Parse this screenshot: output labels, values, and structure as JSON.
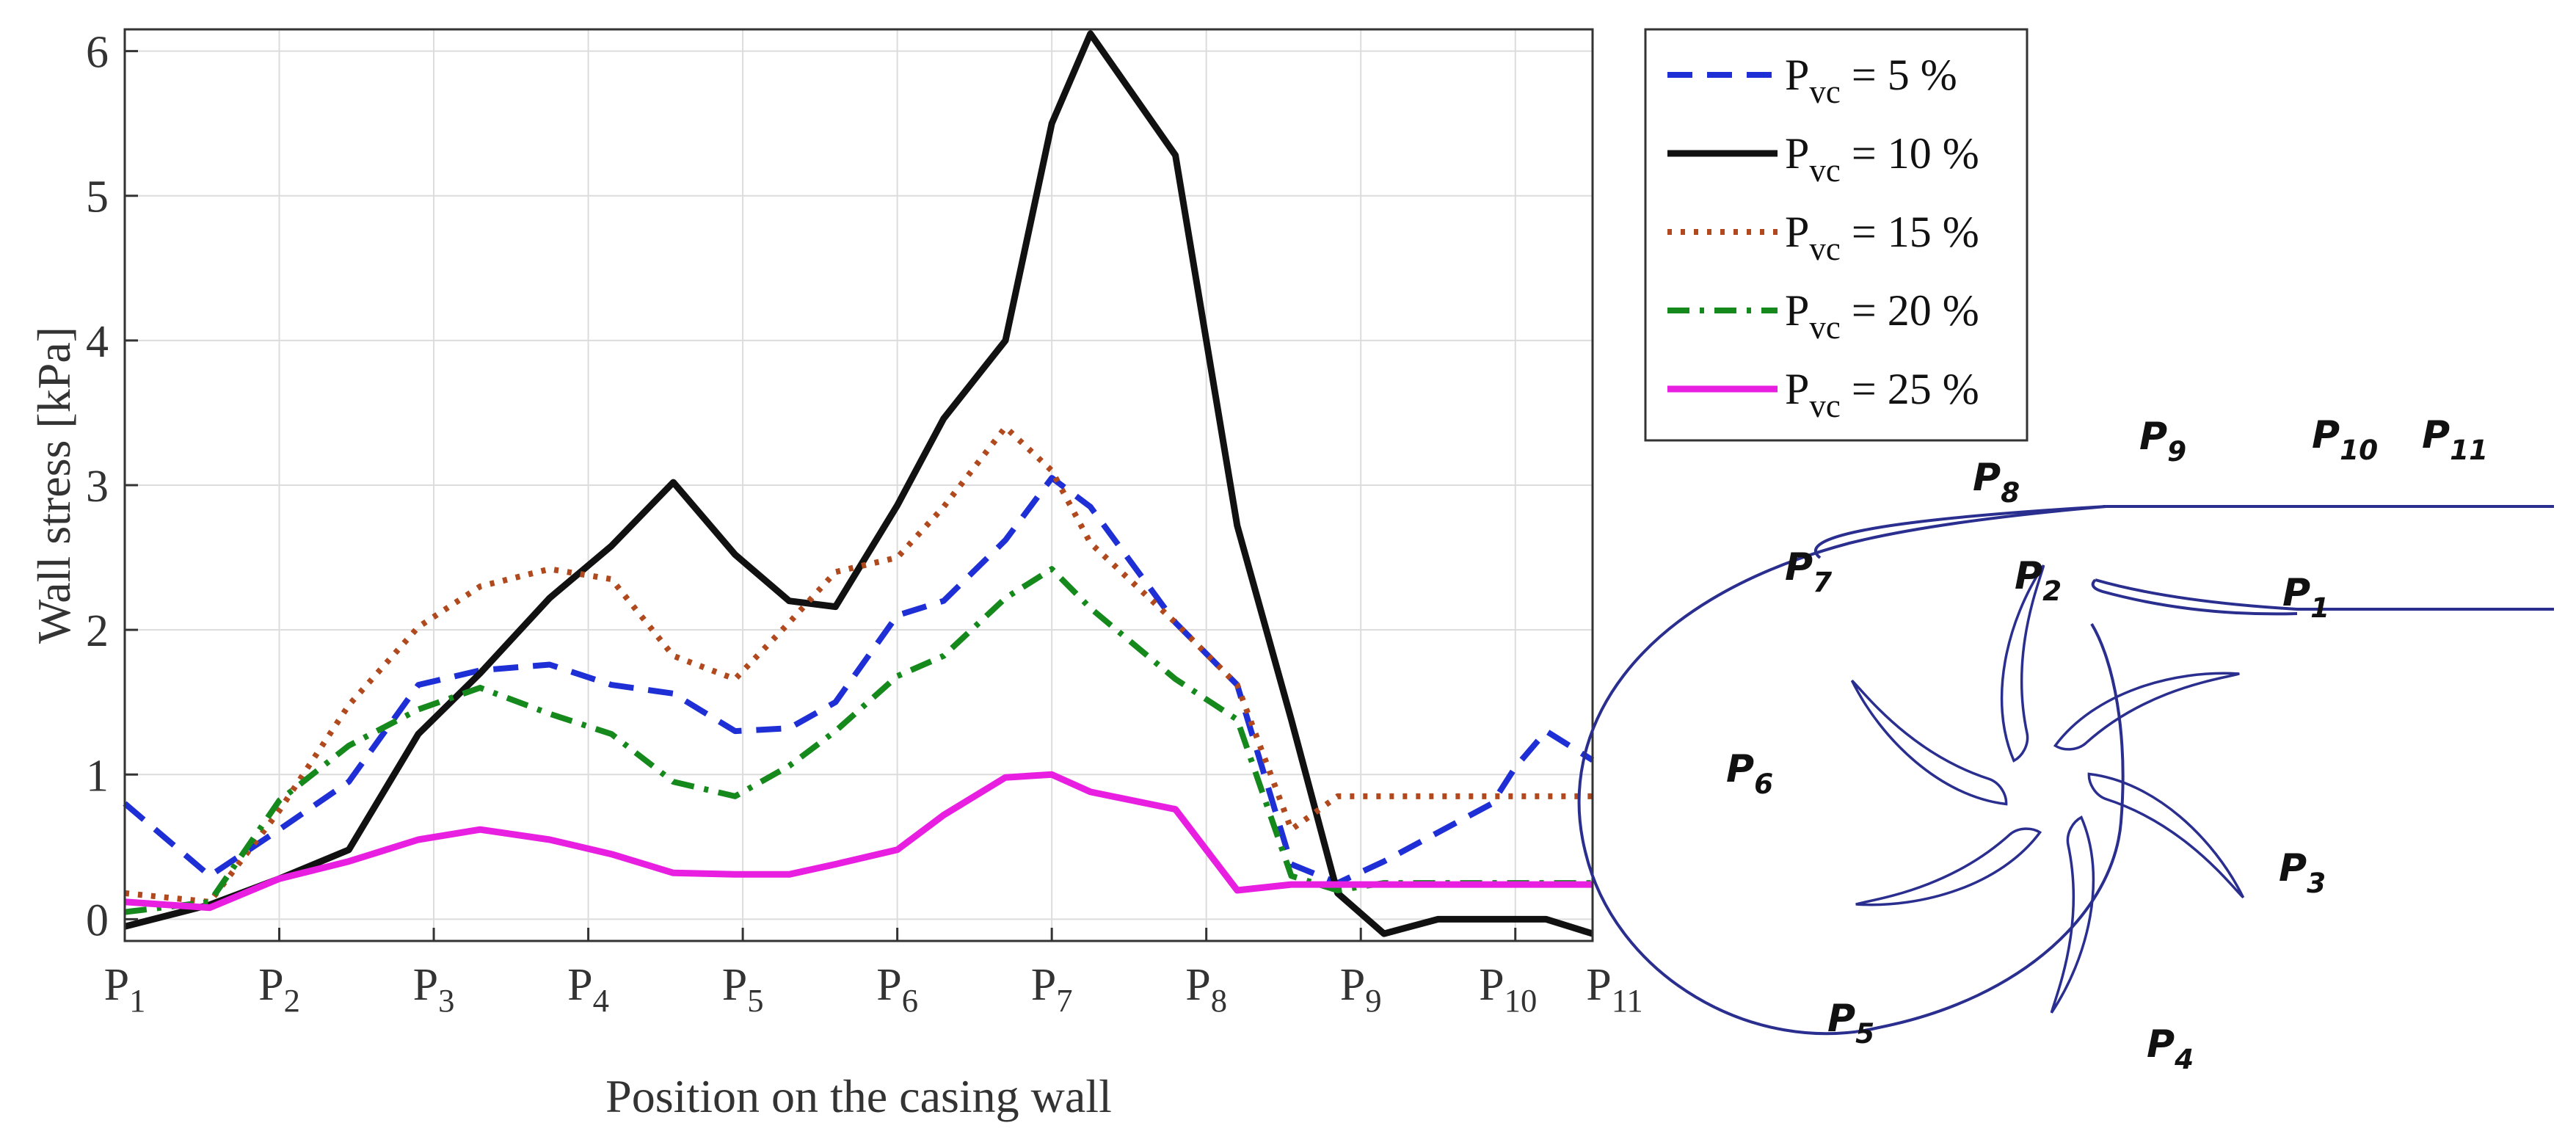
{
  "chart_data": {
    "type": "line",
    "ylabel": "Wall stress [kPa]",
    "xlabel": "Position on the casing wall",
    "xlim": [
      0,
      10
    ],
    "ylim": [
      -0.15,
      6.15
    ],
    "grid": true,
    "legend_position": "outside-top-right",
    "y_ticks": [
      0,
      1,
      2,
      3,
      4,
      5,
      6
    ],
    "x_ticks": [
      {
        "x": 0,
        "base": "P",
        "sub": "1"
      },
      {
        "x": 1,
        "base": "P",
        "sub": "2"
      },
      {
        "x": 2,
        "base": "P",
        "sub": "3"
      },
      {
        "x": 3,
        "base": "P",
        "sub": "4"
      },
      {
        "x": 4,
        "base": "P",
        "sub": "5"
      },
      {
        "x": 5,
        "base": "P",
        "sub": "6"
      },
      {
        "x": 6,
        "base": "P",
        "sub": "7"
      },
      {
        "x": 7,
        "base": "P",
        "sub": "8"
      },
      {
        "x": 8,
        "base": "P",
        "sub": "9"
      },
      {
        "x": 9,
        "base": "P",
        "sub": "10"
      },
      {
        "x": 9.5,
        "base": "P",
        "sub": "11"
      }
    ],
    "series": [
      {
        "name_base": "P",
        "name_sub": "vc",
        "name_rest": " = 5 %",
        "color": "#1f2fd6",
        "dash": "34 20",
        "width": 8,
        "x": [
          0,
          0.55,
          1,
          1.45,
          1.9,
          2.3,
          2.75,
          3.15,
          3.55,
          3.95,
          4.3,
          4.6,
          5,
          5.3,
          5.7,
          6,
          6.25,
          6.8,
          7.2,
          7.55,
          7.85,
          8.15,
          8.5,
          8.85,
          9,
          9.2,
          9.5
        ],
        "y": [
          0.8,
          0.3,
          0.62,
          0.95,
          1.62,
          1.72,
          1.76,
          1.62,
          1.56,
          1.3,
          1.32,
          1.5,
          2.1,
          2.2,
          2.62,
          3.05,
          2.85,
          2.05,
          1.62,
          0.38,
          0.25,
          0.4,
          0.6,
          0.8,
          1.05,
          1.3,
          1.1
        ]
      },
      {
        "name_base": "P",
        "name_sub": "vc",
        "name_rest": " = 10 %",
        "color": "#111111",
        "dash": "",
        "width": 9,
        "x": [
          0,
          0.55,
          1,
          1.45,
          1.9,
          2.3,
          2.75,
          3.15,
          3.55,
          3.95,
          4.3,
          4.6,
          5,
          5.3,
          5.7,
          6,
          6.25,
          6.8,
          7.2,
          7.55,
          7.85,
          8.15,
          8.5,
          8.85,
          9,
          9.2,
          9.5
        ],
        "y": [
          -0.05,
          0.1,
          0.28,
          0.48,
          1.28,
          1.7,
          2.22,
          2.58,
          3.02,
          2.52,
          2.2,
          2.16,
          2.86,
          3.46,
          4.0,
          5.5,
          6.12,
          5.28,
          2.72,
          1.38,
          0.18,
          -0.1,
          0.0,
          0.0,
          0.0,
          0.0,
          -0.1
        ]
      },
      {
        "name_base": "P",
        "name_sub": "vc",
        "name_rest": " = 15 %",
        "color": "#b04a1e",
        "dash": "6 12",
        "width": 8,
        "x": [
          0,
          0.55,
          1,
          1.45,
          1.9,
          2.3,
          2.75,
          3.15,
          3.55,
          3.95,
          4.3,
          4.6,
          5,
          5.3,
          5.7,
          6,
          6.25,
          6.8,
          7.2,
          7.55,
          7.85,
          8.15,
          8.5,
          8.85,
          9,
          9.2,
          9.5
        ],
        "y": [
          0.18,
          0.12,
          0.75,
          1.48,
          2.02,
          2.3,
          2.42,
          2.35,
          1.82,
          1.66,
          2.05,
          2.4,
          2.5,
          2.85,
          3.4,
          3.1,
          2.6,
          2.05,
          1.62,
          0.62,
          0.85,
          0.85,
          0.85,
          0.85,
          0.85,
          0.85,
          0.85
        ]
      },
      {
        "name_base": "P",
        "name_sub": "vc",
        "name_rest": " = 20 %",
        "color": "#16891c",
        "dash": "30 14 6 14",
        "width": 8,
        "x": [
          0,
          0.55,
          1,
          1.45,
          1.9,
          2.3,
          2.75,
          3.15,
          3.55,
          3.95,
          4.3,
          4.6,
          5,
          5.3,
          5.7,
          6,
          6.25,
          6.8,
          7.2,
          7.55,
          7.85,
          8.15,
          8.5,
          8.85,
          9,
          9.2,
          9.5
        ],
        "y": [
          0.05,
          0.12,
          0.82,
          1.2,
          1.45,
          1.6,
          1.42,
          1.28,
          0.95,
          0.85,
          1.06,
          1.3,
          1.68,
          1.82,
          2.22,
          2.42,
          2.15,
          1.66,
          1.38,
          0.3,
          0.2,
          0.25,
          0.25,
          0.25,
          0.25,
          0.25,
          0.25
        ]
      },
      {
        "name_base": "P",
        "name_sub": "vc",
        "name_rest": " = 25 %",
        "color": "#e81ee0",
        "dash": "",
        "width": 9,
        "x": [
          0,
          0.55,
          1,
          1.45,
          1.9,
          2.3,
          2.75,
          3.15,
          3.55,
          3.95,
          4.3,
          4.6,
          5,
          5.3,
          5.7,
          6,
          6.25,
          6.8,
          7.2,
          7.55,
          7.85,
          8.15,
          8.5,
          8.85,
          9,
          9.2,
          9.5
        ],
        "y": [
          0.12,
          0.08,
          0.28,
          0.4,
          0.55,
          0.62,
          0.55,
          0.45,
          0.32,
          0.31,
          0.31,
          0.38,
          0.48,
          0.72,
          0.98,
          1.0,
          0.88,
          0.76,
          0.2,
          0.24,
          0.24,
          0.24,
          0.24,
          0.24,
          0.24,
          0.24,
          0.24
        ]
      }
    ]
  },
  "diagram": {
    "labels": [
      {
        "id": "P1",
        "base": "P",
        "sub": "1"
      },
      {
        "id": "P2",
        "base": "P",
        "sub": "2"
      },
      {
        "id": "P3",
        "base": "P",
        "sub": "3"
      },
      {
        "id": "P4",
        "base": "P",
        "sub": "4"
      },
      {
        "id": "P5",
        "base": "P",
        "sub": "5"
      },
      {
        "id": "P6",
        "base": "P",
        "sub": "6"
      },
      {
        "id": "P7",
        "base": "P",
        "sub": "7"
      },
      {
        "id": "P8",
        "base": "P",
        "sub": "8"
      },
      {
        "id": "P9",
        "base": "P",
        "sub": "9"
      },
      {
        "id": "P10",
        "base": "P",
        "sub": "10"
      },
      {
        "id": "P11",
        "base": "P",
        "sub": "11"
      }
    ],
    "stroke_color": "#2a2f8f"
  }
}
